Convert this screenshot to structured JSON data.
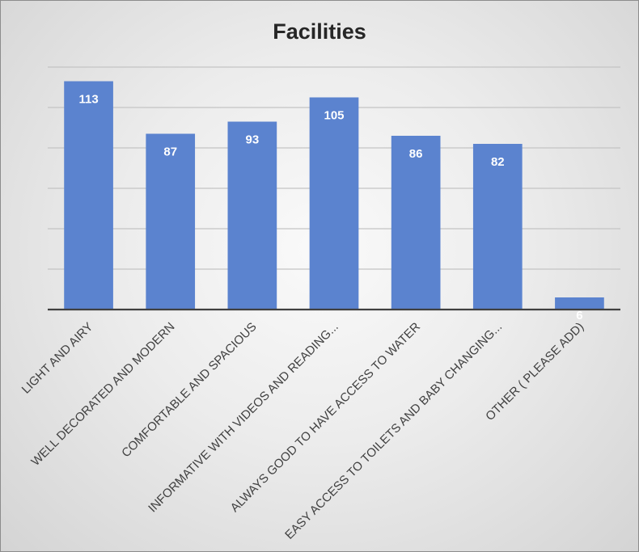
{
  "chart_data": {
    "type": "bar",
    "title": "Facilities",
    "categories": [
      "LIGHT AND AIRY",
      "WELL DECORATED AND MODERN",
      "COMFORTABLE AND SPACIOUS",
      "INFORMATIVE WITH VIDEOS AND READING...",
      "ALWAYS GOOD TO HAVE ACCESS TO WATER",
      "EASY ACCESS TO TOILETS AND BABY CHANGING...",
      "OTHER ( PLEASE ADD)"
    ],
    "values": [
      113,
      87,
      93,
      105,
      86,
      82,
      6
    ],
    "ylim": [
      0,
      120
    ],
    "ytick_step": 20,
    "yaxis_labels_shown": false,
    "grid": true,
    "legend": "none",
    "data_labels": true,
    "colors": {
      "bar": "#5b83cf",
      "gridline": "#c4c4c4",
      "axis": "#404040",
      "title": "#262626",
      "category_label": "#404040",
      "value_label": "#ffffff"
    }
  }
}
